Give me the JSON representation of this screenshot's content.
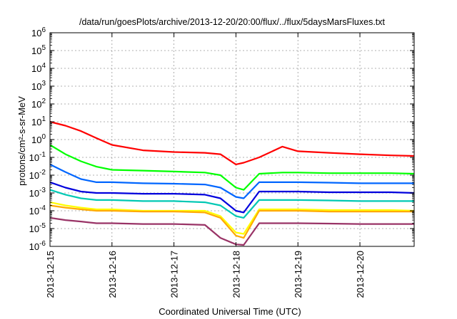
{
  "chart_data": {
    "type": "line",
    "title": "/data/run/goesPlots/archive/2013-12-20/20:00/flux/../flux/5daysMarsFluxes.txt",
    "xlabel": "Coordinated Universal Time (UTC)",
    "ylabel": "protons/cm²-s-sr-MeV",
    "y_scale": "log",
    "ylim": [
      1e-06,
      1000000.0
    ],
    "xlim": [
      "2013-12-15T00:00",
      "2013-12-20T21:00"
    ],
    "y_ticks": [
      {
        "exp": "-6"
      },
      {
        "exp": "-5"
      },
      {
        "exp": "-4"
      },
      {
        "exp": "-3"
      },
      {
        "exp": "-2"
      },
      {
        "exp": "-1"
      },
      {
        "exp": "0"
      },
      {
        "exp": "1"
      },
      {
        "exp": "2"
      },
      {
        "exp": "3"
      },
      {
        "exp": "4"
      },
      {
        "exp": "5"
      },
      {
        "exp": "6"
      }
    ],
    "y_tick_base": "10",
    "x_tick_labels": [
      "2013-12-15",
      "2013-12-16",
      "2013-12-17",
      "2013-12-18",
      "2013-12-19",
      "2013-12-20"
    ],
    "grid": true,
    "legend": "none",
    "series": [
      {
        "color": "#ff0000",
        "x": [
          "2013-12-15T00:00",
          "2013-12-15T06:00",
          "2013-12-15T12:00",
          "2013-12-15T18:00",
          "2013-12-16T00:00",
          "2013-12-16T12:00",
          "2013-12-17T00:00",
          "2013-12-17T12:00",
          "2013-12-17T18:00",
          "2013-12-18T00:00",
          "2013-12-18T03:00",
          "2013-12-18T09:00",
          "2013-12-18T18:00",
          "2013-12-19T00:00",
          "2013-12-19T12:00",
          "2013-12-20T00:00",
          "2013-12-20T12:00",
          "2013-12-20T21:00"
        ],
        "y": [
          10,
          6,
          3,
          1.2,
          0.5,
          0.25,
          0.2,
          0.18,
          0.15,
          0.04,
          0.05,
          0.1,
          0.4,
          0.22,
          0.18,
          0.15,
          0.13,
          0.12
        ]
      },
      {
        "color": "#00ff00",
        "x": [
          "2013-12-15T00:00",
          "2013-12-15T06:00",
          "2013-12-15T12:00",
          "2013-12-15T18:00",
          "2013-12-16T00:00",
          "2013-12-16T12:00",
          "2013-12-17T00:00",
          "2013-12-17T12:00",
          "2013-12-17T18:00",
          "2013-12-18T00:00",
          "2013-12-18T03:00",
          "2013-12-18T09:00",
          "2013-12-18T18:00",
          "2013-12-19T00:00",
          "2013-12-19T12:00",
          "2013-12-20T00:00",
          "2013-12-20T12:00",
          "2013-12-20T21:00"
        ],
        "y": [
          0.5,
          0.15,
          0.06,
          0.03,
          0.02,
          0.018,
          0.016,
          0.014,
          0.01,
          0.002,
          0.0015,
          0.012,
          0.014,
          0.014,
          0.013,
          0.013,
          0.013,
          0.012
        ]
      },
      {
        "color": "#0066ff",
        "x": [
          "2013-12-15T00:00",
          "2013-12-15T06:00",
          "2013-12-15T12:00",
          "2013-12-15T18:00",
          "2013-12-16T00:00",
          "2013-12-16T12:00",
          "2013-12-17T00:00",
          "2013-12-17T12:00",
          "2013-12-17T18:00",
          "2013-12-18T00:00",
          "2013-12-18T03:00",
          "2013-12-18T09:00",
          "2013-12-18T18:00",
          "2013-12-19T00:00",
          "2013-12-19T12:00",
          "2013-12-20T00:00",
          "2013-12-20T12:00",
          "2013-12-20T21:00"
        ],
        "y": [
          0.04,
          0.015,
          0.006,
          0.004,
          0.004,
          0.0035,
          0.0033,
          0.003,
          0.002,
          0.0006,
          0.0005,
          0.004,
          0.004,
          0.004,
          0.0038,
          0.0035,
          0.0035,
          0.0035
        ]
      },
      {
        "color": "#0000dd",
        "x": [
          "2013-12-15T00:00",
          "2013-12-15T06:00",
          "2013-12-15T12:00",
          "2013-12-15T18:00",
          "2013-12-16T00:00",
          "2013-12-16T12:00",
          "2013-12-17T00:00",
          "2013-12-17T12:00",
          "2013-12-17T18:00",
          "2013-12-18T00:00",
          "2013-12-18T03:00",
          "2013-12-18T09:00",
          "2013-12-18T18:00",
          "2013-12-19T00:00",
          "2013-12-19T12:00",
          "2013-12-20T00:00",
          "2013-12-20T12:00",
          "2013-12-20T21:00"
        ],
        "y": [
          0.004,
          0.002,
          0.0012,
          0.001,
          0.001,
          0.0009,
          0.0009,
          0.0008,
          0.0005,
          0.0001,
          8e-05,
          0.0012,
          0.0012,
          0.0012,
          0.0011,
          0.0011,
          0.0011,
          0.001
        ]
      },
      {
        "color": "#00c8b4",
        "x": [
          "2013-12-15T00:00",
          "2013-12-15T06:00",
          "2013-12-15T12:00",
          "2013-12-15T18:00",
          "2013-12-16T00:00",
          "2013-12-16T12:00",
          "2013-12-17T00:00",
          "2013-12-17T12:00",
          "2013-12-17T18:00",
          "2013-12-18T00:00",
          "2013-12-18T03:00",
          "2013-12-18T09:00",
          "2013-12-18T18:00",
          "2013-12-19T00:00",
          "2013-12-19T12:00",
          "2013-12-20T00:00",
          "2013-12-20T12:00",
          "2013-12-20T21:00"
        ],
        "y": [
          0.0015,
          0.0008,
          0.0005,
          0.0004,
          0.0004,
          0.00035,
          0.00035,
          0.0003,
          0.0002,
          5e-05,
          4e-05,
          0.0004,
          0.0004,
          0.0004,
          0.00038,
          0.00035,
          0.00035,
          0.00035
        ]
      },
      {
        "color": "#ffff00",
        "x": [
          "2013-12-15T00:00",
          "2013-12-15T06:00",
          "2013-12-15T12:00",
          "2013-12-15T18:00",
          "2013-12-16T00:00",
          "2013-12-16T12:00",
          "2013-12-17T00:00",
          "2013-12-17T12:00",
          "2013-12-17T18:00",
          "2013-12-18T00:00",
          "2013-12-18T03:00",
          "2013-12-18T09:00",
          "2013-12-18T18:00",
          "2013-12-19T00:00",
          "2013-12-19T12:00",
          "2013-12-20T00:00",
          "2013-12-20T12:00",
          "2013-12-20T21:00"
        ],
        "y": [
          0.0003,
          0.0002,
          0.00015,
          0.00012,
          0.00012,
          0.0001,
          0.0001,
          0.0001,
          5e-05,
          6e-06,
          5e-06,
          0.00012,
          0.00012,
          0.00012,
          0.00011,
          0.00011,
          0.00011,
          0.0001
        ]
      },
      {
        "color": "#ffaa00",
        "x": [
          "2013-12-15T00:00",
          "2013-12-15T06:00",
          "2013-12-15T12:00",
          "2013-12-15T18:00",
          "2013-12-16T00:00",
          "2013-12-16T12:00",
          "2013-12-17T00:00",
          "2013-12-17T12:00",
          "2013-12-17T18:00",
          "2013-12-18T00:00",
          "2013-12-18T03:00",
          "2013-12-18T09:00",
          "2013-12-18T18:00",
          "2013-12-19T00:00",
          "2013-12-19T12:00",
          "2013-12-20T00:00",
          "2013-12-20T12:00",
          "2013-12-20T21:00"
        ],
        "y": [
          0.0002,
          0.00015,
          0.00012,
          0.0001,
          0.0001,
          9e-05,
          9e-05,
          8e-05,
          4e-05,
          4e-06,
          3e-06,
          0.0001,
          0.0001,
          0.0001,
          9e-05,
          9e-05,
          9e-05,
          9e-05
        ]
      },
      {
        "color": "#993366",
        "x": [
          "2013-12-15T00:00",
          "2013-12-15T06:00",
          "2013-12-15T12:00",
          "2013-12-15T18:00",
          "2013-12-16T00:00",
          "2013-12-16T12:00",
          "2013-12-17T00:00",
          "2013-12-17T12:00",
          "2013-12-17T18:00",
          "2013-12-18T00:00",
          "2013-12-18T03:00",
          "2013-12-18T09:00",
          "2013-12-18T18:00",
          "2013-12-19T00:00",
          "2013-12-19T12:00",
          "2013-12-20T00:00",
          "2013-12-20T12:00",
          "2013-12-20T21:00"
        ],
        "y": [
          4e-05,
          3e-05,
          2.5e-05,
          2e-05,
          2e-05,
          1.8e-05,
          1.8e-05,
          1.6e-05,
          3e-06,
          1.3e-06,
          1.2e-06,
          2e-05,
          2e-05,
          2e-05,
          1.9e-05,
          1.8e-05,
          1.8e-05,
          1.8e-05
        ]
      }
    ]
  }
}
